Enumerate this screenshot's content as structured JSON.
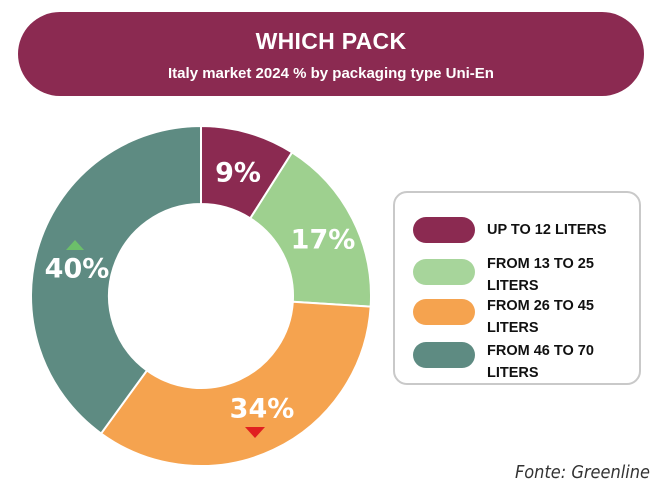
{
  "header": {
    "title": "WHICH PACK",
    "subtitle": "Italy market 2024 % by packaging type Uni-En"
  },
  "chart_data": {
    "type": "pie",
    "variant": "donut",
    "title": "WHICH PACK",
    "subtitle": "Italy market 2024 % by packaging type Uni-En",
    "categories": [
      "UP TO 12 LITERS",
      "FROM 13 TO 25 LITERS",
      "FROM 26 TO 45 LITERS",
      "FROM 46 TO 70 LITERS"
    ],
    "values": [
      9,
      17,
      34,
      40
    ],
    "labels": [
      "9%",
      "17%",
      "34%",
      "40%"
    ],
    "colors": [
      "#8b2a51",
      "#9ed08f",
      "#f5a34f",
      "#5e8b82"
    ],
    "trend_markers": [
      {
        "category": "FROM 26 TO 45 LITERS",
        "direction": "down",
        "color": "#e02020"
      },
      {
        "category": "FROM 46 TO 70 LITERS",
        "direction": "up",
        "color": "#6cbf6a"
      }
    ],
    "legend_position": "right",
    "source": "Fonte: Greenline"
  },
  "legend": {
    "items": [
      {
        "label": "UP TO 12 LITERS",
        "color": "#8b2a51"
      },
      {
        "label": "FROM 13 TO 25 LITERS",
        "color": "#a7d59b"
      },
      {
        "label": "FROM 26 TO 45 LITERS",
        "color": "#f5a34f"
      },
      {
        "label": "FROM 46 TO 70 LITERS",
        "color": "#5e8b82"
      }
    ]
  },
  "footer": {
    "source": "Fonte: Greenline"
  }
}
